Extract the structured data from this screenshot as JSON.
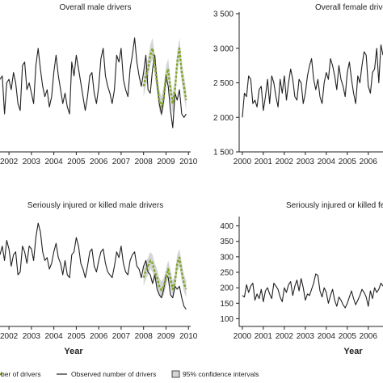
{
  "chart_data": [
    {
      "type": "line",
      "title": "Overall male drivers",
      "xlabel": "",
      "ylabel": "",
      "x_ticks": [
        "2002",
        "2003",
        "2004",
        "2005",
        "2006",
        "2007",
        "2008",
        "2009",
        "2010"
      ],
      "y_ticks": [],
      "xlim": [
        2001.6,
        2010.1
      ],
      "ylim": [
        1500,
        3500
      ],
      "grid": false,
      "series": [
        {
          "name": "Observed number of drivers",
          "style": "solid",
          "x": [
            2001.6,
            2001.7,
            2001.8,
            2001.9,
            2002.0,
            2002.1,
            2002.2,
            2002.3,
            2002.4,
            2002.5,
            2002.6,
            2002.7,
            2002.8,
            2002.9,
            2003.0,
            2003.1,
            2003.2,
            2003.3,
            2003.4,
            2003.5,
            2003.6,
            2003.7,
            2003.8,
            2003.9,
            2004.0,
            2004.1,
            2004.2,
            2004.3,
            2004.4,
            2004.5,
            2004.6,
            2004.7,
            2004.8,
            2004.9,
            2005.0,
            2005.1,
            2005.2,
            2005.3,
            2005.4,
            2005.5,
            2005.6,
            2005.7,
            2005.8,
            2005.9,
            2006.0,
            2006.1,
            2006.2,
            2006.3,
            2006.4,
            2006.5,
            2006.6,
            2006.7,
            2006.8,
            2006.9,
            2007.0,
            2007.1,
            2007.2,
            2007.3,
            2007.4,
            2007.5,
            2007.6,
            2007.7,
            2007.8,
            2007.9,
            2008.0,
            2008.1,
            2008.2,
            2008.3,
            2008.4,
            2008.5,
            2008.6,
            2008.7,
            2008.8,
            2008.9,
            2009.0,
            2009.1,
            2009.2,
            2009.3,
            2009.4,
            2009.5,
            2009.6,
            2009.7,
            2009.8,
            2009.9
          ],
          "y": [
            2550,
            2600,
            2050,
            2500,
            2550,
            2400,
            2650,
            2500,
            2200,
            2100,
            2750,
            2800,
            2400,
            2500,
            2350,
            2200,
            2750,
            3000,
            2700,
            2450,
            2300,
            2400,
            2150,
            2300,
            2650,
            2900,
            2600,
            2400,
            2200,
            2350,
            2150,
            2050,
            2800,
            2600,
            2900,
            2700,
            2500,
            2300,
            2100,
            2300,
            2600,
            2650,
            2350,
            2200,
            2450,
            2850,
            3000,
            2600,
            2450,
            2350,
            2200,
            2400,
            2900,
            2800,
            3000,
            2550,
            2400,
            2300,
            2700,
            2900,
            3150,
            2800,
            2600,
            2450,
            2650,
            2900,
            2400,
            2350,
            2700,
            2900,
            2500,
            2200,
            2050,
            2250,
            2600,
            2450,
            2100,
            1850,
            2350,
            2250,
            2400,
            2050,
            2000,
            2050
          ]
        },
        {
          "name": "Predicted number of drivers",
          "style": "dashed",
          "x": [
            2008.0,
            2008.1,
            2008.2,
            2008.3,
            2008.4,
            2008.5,
            2008.6,
            2008.7,
            2008.8,
            2008.9,
            2009.0,
            2009.1,
            2009.2,
            2009.3,
            2009.4,
            2009.5,
            2009.6,
            2009.7,
            2009.8,
            2009.9
          ],
          "y": [
            2450,
            2600,
            2700,
            2900,
            3000,
            2750,
            2500,
            2250,
            2150,
            2300,
            2600,
            2700,
            2400,
            2200,
            2400,
            2800,
            3000,
            2650,
            2450,
            2250
          ]
        }
      ],
      "confidence_band": {
        "x": [
          2008.0,
          2008.1,
          2008.2,
          2008.3,
          2008.4,
          2008.5,
          2008.6,
          2008.7,
          2008.8,
          2008.9,
          2009.0,
          2009.1,
          2009.2,
          2009.3,
          2009.4,
          2009.5,
          2009.6,
          2009.7,
          2009.8,
          2009.9
        ],
        "lower": [
          2300,
          2450,
          2550,
          2750,
          2850,
          2600,
          2350,
          2100,
          2000,
          2150,
          2450,
          2550,
          2250,
          2050,
          2250,
          2650,
          2850,
          2500,
          2300,
          2100
        ],
        "upper": [
          2600,
          2750,
          2850,
          3050,
          3150,
          2900,
          2650,
          2400,
          2300,
          2450,
          2750,
          2850,
          2550,
          2350,
          2550,
          2950,
          3150,
          2800,
          2600,
          2400
        ]
      }
    },
    {
      "type": "line",
      "title": "Overall female drivers",
      "xlabel": "",
      "ylabel": "",
      "x_ticks": [
        "2000",
        "2001",
        "2002",
        "2003",
        "2004",
        "2005",
        "2006"
      ],
      "y_ticks": [
        "1 500",
        "2 000",
        "2 500",
        "3 000",
        "3 500"
      ],
      "xlim": [
        1999.85,
        2006.7
      ],
      "ylim": [
        1500,
        3500
      ],
      "grid": false,
      "series": [
        {
          "name": "Observed number of drivers",
          "style": "solid",
          "x": [
            2000.0,
            2000.1,
            2000.2,
            2000.3,
            2000.4,
            2000.5,
            2000.6,
            2000.7,
            2000.8,
            2000.9,
            2001.0,
            2001.1,
            2001.2,
            2001.3,
            2001.4,
            2001.5,
            2001.6,
            2001.7,
            2001.8,
            2001.9,
            2002.0,
            2002.1,
            2002.2,
            2002.3,
            2002.4,
            2002.5,
            2002.6,
            2002.7,
            2002.8,
            2002.9,
            2003.0,
            2003.1,
            2003.2,
            2003.3,
            2003.4,
            2003.5,
            2003.6,
            2003.7,
            2003.8,
            2003.9,
            2004.0,
            2004.1,
            2004.2,
            2004.3,
            2004.4,
            2004.5,
            2004.6,
            2004.7,
            2004.8,
            2004.9,
            2005.0,
            2005.1,
            2005.2,
            2005.3,
            2005.4,
            2005.5,
            2005.6,
            2005.7,
            2005.8,
            2005.9,
            2006.0,
            2006.1,
            2006.2,
            2006.3,
            2006.4,
            2006.5,
            2006.6,
            2006.7
          ],
          "y": [
            2000,
            2350,
            2300,
            2600,
            2550,
            2200,
            2250,
            2150,
            2400,
            2450,
            2100,
            2300,
            2550,
            2200,
            2600,
            2500,
            2300,
            2150,
            2550,
            2350,
            2600,
            2250,
            2500,
            2700,
            2550,
            2300,
            2250,
            2550,
            2500,
            2200,
            2350,
            2600,
            2750,
            2850,
            2550,
            2400,
            2550,
            2300,
            2200,
            2500,
            2650,
            2550,
            2850,
            2750,
            2600,
            2400,
            2750,
            2550,
            2450,
            2300,
            2650,
            2800,
            2550,
            2350,
            2200,
            2600,
            2500,
            2750,
            2950,
            2900,
            2450,
            2350,
            2650,
            2700,
            3000,
            2500,
            3050,
            2900
          ]
        }
      ]
    },
    {
      "type": "line",
      "title": "Seriously injured or killed male drivers",
      "xlabel": "Year",
      "ylabel": "",
      "x_ticks": [
        "2002",
        "2003",
        "2004",
        "2005",
        "2006",
        "2007",
        "2008",
        "2009",
        "2010"
      ],
      "y_ticks": [],
      "xlim": [
        2001.6,
        2010.1
      ],
      "ylim": [
        75,
        275
      ],
      "grid": false,
      "series": [
        {
          "name": "Observed number of drivers",
          "style": "solid",
          "x": [
            2001.6,
            2001.7,
            2001.8,
            2001.9,
            2002.0,
            2002.1,
            2002.2,
            2002.3,
            2002.4,
            2002.5,
            2002.6,
            2002.7,
            2002.8,
            2002.9,
            2003.0,
            2003.1,
            2003.2,
            2003.3,
            2003.4,
            2003.5,
            2003.6,
            2003.7,
            2003.8,
            2003.9,
            2004.0,
            2004.1,
            2004.2,
            2004.3,
            2004.4,
            2004.5,
            2004.6,
            2004.7,
            2004.8,
            2004.9,
            2005.0,
            2005.1,
            2005.2,
            2005.3,
            2005.4,
            2005.5,
            2005.6,
            2005.7,
            2005.8,
            2005.9,
            2006.0,
            2006.1,
            2006.2,
            2006.3,
            2006.4,
            2006.5,
            2006.6,
            2006.7,
            2006.8,
            2006.9,
            2007.0,
            2007.1,
            2007.2,
            2007.3,
            2007.4,
            2007.5,
            2007.6,
            2007.7,
            2007.8,
            2007.9,
            2008.0,
            2008.1,
            2008.2,
            2008.3,
            2008.4,
            2008.5,
            2008.6,
            2008.7,
            2008.8,
            2008.9,
            2009.0,
            2009.1,
            2009.2,
            2009.3,
            2009.4,
            2009.5,
            2009.6,
            2009.7,
            2009.8,
            2009.9
          ],
          "y": [
            200,
            215,
            190,
            225,
            210,
            180,
            200,
            205,
            165,
            170,
            215,
            205,
            185,
            215,
            210,
            190,
            230,
            255,
            240,
            205,
            190,
            195,
            175,
            185,
            205,
            220,
            195,
            185,
            165,
            190,
            165,
            160,
            200,
            205,
            230,
            215,
            185,
            175,
            160,
            180,
            205,
            210,
            180,
            170,
            190,
            205,
            210,
            185,
            170,
            165,
            160,
            180,
            205,
            195,
            215,
            185,
            170,
            165,
            190,
            200,
            205,
            180,
            175,
            160,
            180,
            190,
            170,
            165,
            150,
            165,
            140,
            130,
            125,
            140,
            165,
            160,
            130,
            125,
            145,
            140,
            145,
            125,
            110,
            105
          ]
        },
        {
          "name": "Predicted number of drivers",
          "style": "dashed",
          "x": [
            2008.0,
            2008.1,
            2008.2,
            2008.3,
            2008.4,
            2008.5,
            2008.6,
            2008.7,
            2008.8,
            2008.9,
            2009.0,
            2009.1,
            2009.2,
            2009.3,
            2009.4,
            2009.5,
            2009.6,
            2009.7,
            2009.8,
            2009.9
          ],
          "y": [
            160,
            172,
            180,
            190,
            185,
            170,
            160,
            145,
            138,
            145,
            160,
            175,
            158,
            140,
            152,
            185,
            195,
            170,
            150,
            140
          ]
        }
      ],
      "confidence_band": {
        "x": [
          2008.0,
          2008.1,
          2008.2,
          2008.3,
          2008.4,
          2008.5,
          2008.6,
          2008.7,
          2008.8,
          2008.9,
          2009.0,
          2009.1,
          2009.2,
          2009.3,
          2009.4,
          2009.5,
          2009.6,
          2009.7,
          2009.8,
          2009.9
        ],
        "lower": [
          145,
          157,
          165,
          175,
          170,
          155,
          145,
          130,
          123,
          130,
          145,
          160,
          143,
          125,
          137,
          170,
          180,
          155,
          135,
          125
        ],
        "upper": [
          175,
          187,
          195,
          205,
          200,
          185,
          175,
          160,
          153,
          160,
          175,
          190,
          173,
          155,
          167,
          200,
          210,
          185,
          165,
          155
        ]
      }
    },
    {
      "type": "line",
      "title": "Seriously injured or killed female drivers",
      "xlabel": "Year",
      "ylabel": "",
      "x_ticks": [
        "2000",
        "2001",
        "2002",
        "2003",
        "2004",
        "2005",
        "2006"
      ],
      "y_ticks": [
        "100",
        "150",
        "200",
        "250",
        "300",
        "350",
        "400"
      ],
      "xlim": [
        1999.85,
        2006.7
      ],
      "ylim": [
        75,
        425
      ],
      "grid": false,
      "series": [
        {
          "name": "Observed number of drivers",
          "style": "solid",
          "x": [
            2000.0,
            2000.1,
            2000.2,
            2000.3,
            2000.4,
            2000.5,
            2000.6,
            2000.7,
            2000.8,
            2000.9,
            2001.0,
            2001.1,
            2001.2,
            2001.3,
            2001.4,
            2001.5,
            2001.6,
            2001.7,
            2001.8,
            2001.9,
            2002.0,
            2002.1,
            2002.2,
            2002.3,
            2002.4,
            2002.5,
            2002.6,
            2002.7,
            2002.8,
            2002.9,
            2003.0,
            2003.1,
            2003.2,
            2003.3,
            2003.4,
            2003.5,
            2003.6,
            2003.7,
            2003.8,
            2003.9,
            2004.0,
            2004.1,
            2004.2,
            2004.3,
            2004.4,
            2004.5,
            2004.6,
            2004.7,
            2004.8,
            2004.9,
            2005.0,
            2005.1,
            2005.2,
            2005.3,
            2005.4,
            2005.5,
            2005.6,
            2005.7,
            2005.8,
            2005.9,
            2006.0,
            2006.1,
            2006.2,
            2006.3,
            2006.4,
            2006.5,
            2006.6,
            2006.7
          ],
          "y": [
            175,
            170,
            210,
            185,
            205,
            215,
            160,
            180,
            165,
            195,
            155,
            190,
            200,
            180,
            165,
            215,
            205,
            195,
            170,
            155,
            200,
            185,
            210,
            220,
            175,
            205,
            225,
            190,
            230,
            200,
            160,
            180,
            175,
            195,
            215,
            245,
            240,
            190,
            170,
            200,
            185,
            150,
            175,
            195,
            160,
            140,
            170,
            160,
            145,
            135,
            150,
            170,
            190,
            165,
            145,
            160,
            175,
            195,
            185,
            170,
            140,
            190,
            165,
            200,
            185,
            195,
            215,
            205
          ]
        }
      ]
    }
  ],
  "legend": {
    "items": [
      {
        "label": "ber of drivers",
        "style": "dashed"
      },
      {
        "label": "Observed number of drivers",
        "style": "solid"
      },
      {
        "label": "95% confidence intervals",
        "style": "band"
      }
    ]
  },
  "colors": {
    "observed": "#231f20",
    "predicted": "#7fa625",
    "band": "#d4d5d6",
    "axis": "#231f20"
  }
}
